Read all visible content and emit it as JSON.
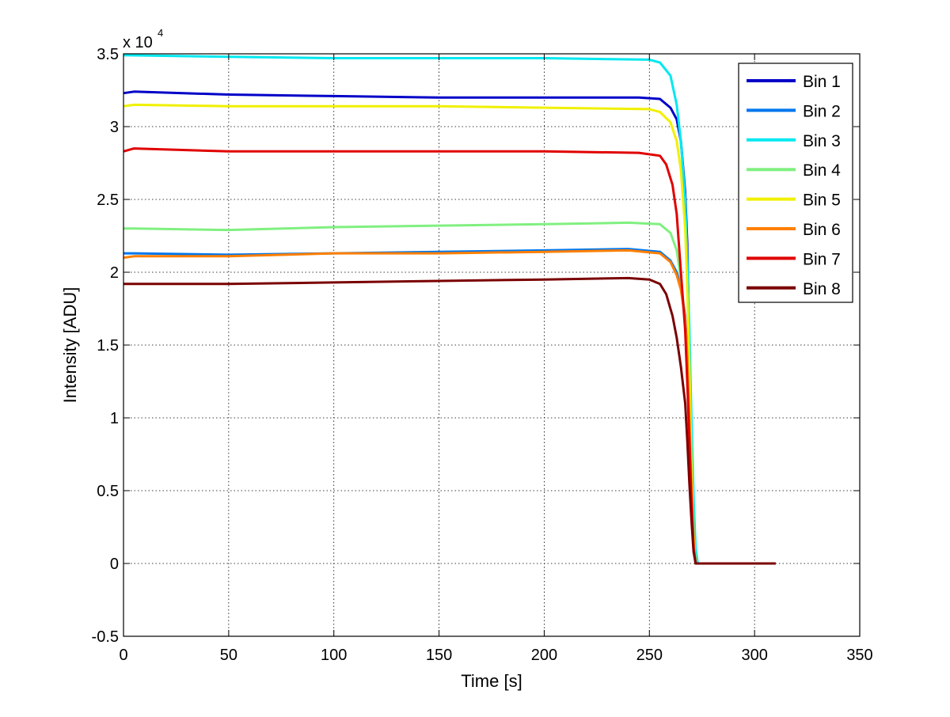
{
  "chart_data": {
    "type": "line",
    "xlabel": "Time [s]",
    "ylabel": "Intensity [ADU]",
    "y_multiplier": {
      "base": "x 10",
      "exponent": "4"
    },
    "xlim": [
      0,
      350
    ],
    "ylim": [
      -0.5,
      3.5
    ],
    "x_ticks": [
      0,
      50,
      100,
      150,
      200,
      250,
      300,
      350
    ],
    "x_tick_labels": [
      "0",
      "50",
      "100",
      "150",
      "200",
      "250",
      "300",
      "350"
    ],
    "y_ticks": [
      -0.5,
      0,
      0.5,
      1,
      1.5,
      2,
      2.5,
      3,
      3.5
    ],
    "y_tick_labels": [
      "-0.5",
      "0",
      "0.5",
      "1",
      "1.5",
      "2",
      "2.5",
      "3",
      "3.5"
    ],
    "grid": true,
    "legend_position": "top-right",
    "series": [
      {
        "name": "Bin 1",
        "color": "#0000c8",
        "x": [
          0,
          5,
          50,
          100,
          150,
          200,
          245,
          255,
          260,
          263,
          265,
          267,
          268,
          269,
          270,
          271,
          272,
          280,
          300,
          310
        ],
        "values": [
          3.23,
          3.24,
          3.22,
          3.21,
          3.2,
          3.2,
          3.2,
          3.19,
          3.13,
          3.05,
          2.9,
          2.55,
          2.2,
          1.5,
          0.8,
          0.2,
          0.0,
          0.0,
          0.0,
          0.0
        ]
      },
      {
        "name": "Bin 2",
        "color": "#0077ee",
        "x": [
          0,
          5,
          50,
          100,
          150,
          200,
          240,
          255,
          260,
          263,
          265,
          267,
          268,
          269,
          270,
          271,
          272,
          280,
          300,
          310
        ],
        "values": [
          2.13,
          2.13,
          2.12,
          2.13,
          2.14,
          2.15,
          2.16,
          2.14,
          2.08,
          2.0,
          1.9,
          1.7,
          1.45,
          1.0,
          0.55,
          0.15,
          0.0,
          0.0,
          0.0,
          0.0
        ]
      },
      {
        "name": "Bin 3",
        "color": "#00e8f0",
        "x": [
          0,
          50,
          100,
          150,
          200,
          250,
          255,
          260,
          263,
          265,
          267,
          268,
          269,
          270,
          271,
          272,
          273,
          280,
          300,
          310
        ],
        "values": [
          3.49,
          3.48,
          3.47,
          3.47,
          3.47,
          3.46,
          3.44,
          3.35,
          3.15,
          2.9,
          2.5,
          2.1,
          1.6,
          1.0,
          0.45,
          0.1,
          0.0,
          0.0,
          0.0,
          0.0
        ]
      },
      {
        "name": "Bin 4",
        "color": "#80f080",
        "x": [
          0,
          5,
          50,
          100,
          150,
          200,
          240,
          255,
          260,
          263,
          265,
          267,
          268,
          269,
          270,
          271,
          272,
          280,
          300,
          310
        ],
        "values": [
          2.3,
          2.3,
          2.29,
          2.31,
          2.32,
          2.33,
          2.34,
          2.33,
          2.27,
          2.15,
          1.95,
          1.65,
          1.35,
          0.95,
          0.5,
          0.12,
          0.0,
          0.0,
          0.0,
          0.0
        ]
      },
      {
        "name": "Bin 5",
        "color": "#f0f000",
        "x": [
          0,
          5,
          50,
          100,
          150,
          200,
          250,
          255,
          260,
          263,
          265,
          267,
          268,
          269,
          270,
          271,
          272,
          280,
          300,
          310
        ],
        "values": [
          3.14,
          3.15,
          3.14,
          3.14,
          3.14,
          3.13,
          3.12,
          3.1,
          3.03,
          2.9,
          2.7,
          2.3,
          1.9,
          1.35,
          0.7,
          0.2,
          0.0,
          0.0,
          0.0,
          0.0
        ]
      },
      {
        "name": "Bin 6",
        "color": "#ff7f00",
        "x": [
          0,
          5,
          50,
          100,
          150,
          200,
          240,
          255,
          260,
          263,
          265,
          267,
          268,
          269,
          270,
          271,
          272,
          280,
          300,
          310
        ],
        "values": [
          2.1,
          2.11,
          2.11,
          2.13,
          2.13,
          2.14,
          2.15,
          2.13,
          2.07,
          1.98,
          1.88,
          1.68,
          1.42,
          0.98,
          0.52,
          0.14,
          0.0,
          0.0,
          0.0,
          0.0
        ]
      },
      {
        "name": "Bin 7",
        "color": "#e00000",
        "x": [
          0,
          5,
          50,
          100,
          150,
          200,
          245,
          255,
          258,
          261,
          263,
          265,
          267,
          268,
          269,
          270,
          271,
          272,
          280,
          310
        ],
        "values": [
          2.83,
          2.85,
          2.83,
          2.83,
          2.83,
          2.83,
          2.82,
          2.8,
          2.74,
          2.6,
          2.4,
          2.0,
          1.6,
          1.25,
          0.85,
          0.45,
          0.1,
          0.0,
          0.0,
          0.0
        ]
      },
      {
        "name": "Bin 8",
        "color": "#7a0000",
        "x": [
          0,
          5,
          50,
          100,
          150,
          200,
          240,
          250,
          255,
          258,
          261,
          263,
          265,
          267,
          268,
          269,
          270,
          271,
          272,
          310
        ],
        "values": [
          1.92,
          1.92,
          1.92,
          1.93,
          1.94,
          1.95,
          1.96,
          1.95,
          1.92,
          1.85,
          1.7,
          1.55,
          1.35,
          1.1,
          0.85,
          0.55,
          0.3,
          0.08,
          0.0,
          0.0
        ]
      }
    ]
  }
}
